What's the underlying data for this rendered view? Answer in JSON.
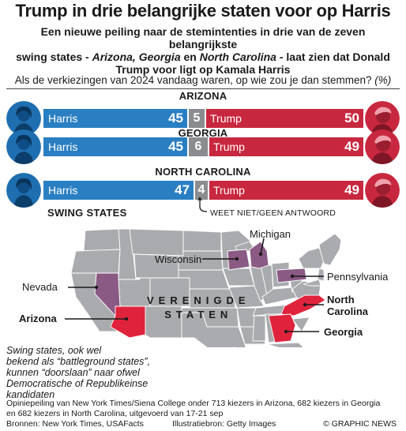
{
  "header": {
    "title": "Trump in drie belangrijke staten voor op Harris",
    "subtitle_line1": "Een nieuwe peiling naar de stemintenties in drie van de zeven belangrijkste",
    "subtitle_line2_a": "swing states - ",
    "subtitle_line2_b": "Arizona, Georgia",
    "subtitle_line2_c": " en ",
    "subtitle_line2_d": "North Carolina",
    "subtitle_line2_e": " - laat zien dat Donald",
    "subtitle_line3": "Trump voor ligt op Kamala Harris"
  },
  "question": {
    "text": "Als de verkiezingen van 2024 vandaag waren, op wie zou je dan stemmen?",
    "unit": "(%)"
  },
  "chart_data": {
    "type": "bar",
    "stacked": true,
    "orientation": "horizontal",
    "categories": [
      "ARIZONA",
      "GEORGIA",
      "NORTH CAROLINA"
    ],
    "series": [
      {
        "name": "Harris",
        "values": [
          45,
          45,
          47
        ],
        "color": "#2a7fc2"
      },
      {
        "name": "WEET NIET/GEEN ANTWOORD",
        "values": [
          5,
          6,
          4
        ],
        "color": "#8a8c8f"
      },
      {
        "name": "Trump",
        "values": [
          50,
          49,
          49
        ],
        "color": "#c8283f"
      }
    ],
    "unit": "%"
  },
  "swing": {
    "title": "SWING STATES",
    "country_label": [
      "VERENIGDE",
      "STATEN"
    ],
    "states": {
      "michigan": "Michigan",
      "wisconsin": "Wisconsin",
      "pennsylvania": "Pennsylvania",
      "nevada": "Nevada",
      "north_carolina": [
        "North",
        "Carolina"
      ],
      "arizona": "Arizona",
      "georgia": "Georgia"
    },
    "colors": {
      "swing": "#8a5a85",
      "poll": "#e0233c",
      "land": "#a9abae",
      "border": "#ffffff"
    }
  },
  "note": [
    "Swing states, ook wel",
    "bekend als “battleground states”,",
    "kunnen “doorslaan” naar ofwel",
    "Democratische of Republikeinse kandidaten"
  ],
  "source": {
    "line1": "Opiniepeiling van New York Times/Siena College onder 713 kiezers in Arizona, 682 kiezers in Georgia",
    "line2": "en 682 kiezers in North Carolina, uitgevoerd van 17-21 sep",
    "sources": "Bronnen: New York Times, USAFacts",
    "illustration": "Illustratiebron: Getty Images",
    "credit": "© GRAPHIC NEWS"
  }
}
